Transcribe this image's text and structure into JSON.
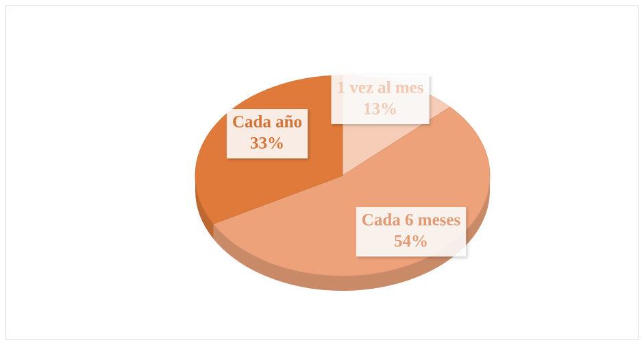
{
  "chart_data": {
    "type": "pie",
    "categories": [
      "1 vez al mes",
      "Cada 6 meses",
      "Cada año"
    ],
    "values": [
      13,
      54,
      33
    ],
    "value_labels": [
      "13%",
      "54%",
      "33%"
    ],
    "colors": [
      "#f6cdb6",
      "#eda27a",
      "#df7a3a"
    ]
  }
}
